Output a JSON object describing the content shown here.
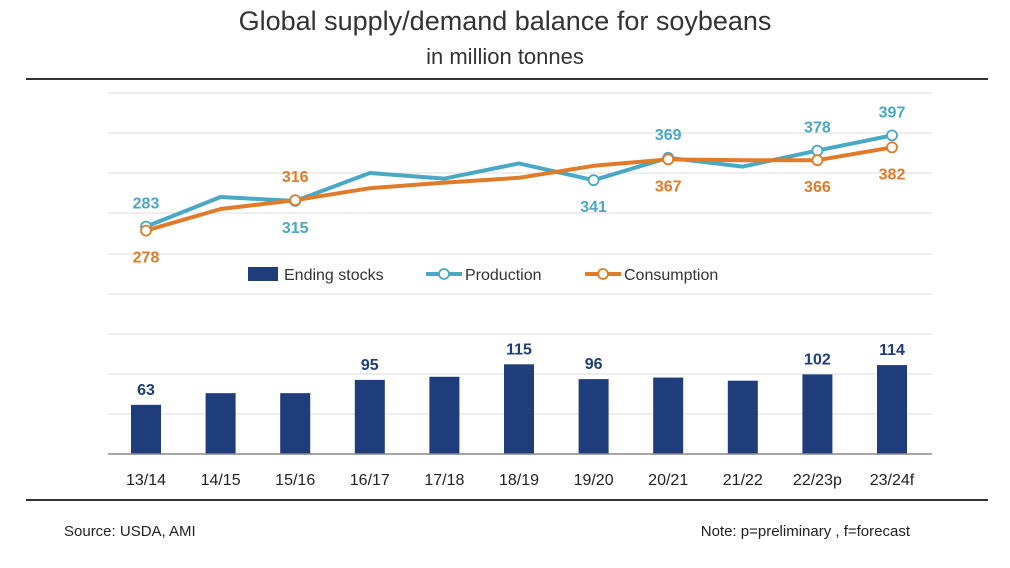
{
  "chart_data": {
    "type": "bar+line",
    "title": "Global supply/demand balance for soybeans",
    "subtitle": "in million tonnes",
    "categories": [
      "13/14",
      "14/15",
      "15/16",
      "16/17",
      "17/18",
      "18/19",
      "19/20",
      "20/21",
      "21/22",
      "22/23p",
      "23/24f"
    ],
    "bars": {
      "name": "Ending stocks",
      "color": "#1f3d7a",
      "values": [
        63,
        78,
        78,
        95,
        99,
        115,
        96,
        98,
        94,
        102,
        114
      ],
      "labels": [
        "63",
        "",
        "",
        "95",
        "",
        "115",
        "96",
        "",
        "",
        "102",
        "114"
      ]
    },
    "lines": [
      {
        "name": "Production",
        "color": "#4aa8c4",
        "values": [
          283,
          320,
          315,
          350,
          343,
          362,
          341,
          369,
          358,
          378,
          397
        ],
        "markers": [
          0,
          2,
          6,
          7,
          9,
          10
        ],
        "labels": [
          "283",
          "",
          "315",
          "",
          "",
          "",
          "341",
          "369",
          "",
          "378",
          "397"
        ]
      },
      {
        "name": "Consumption",
        "color": "#e07b2a",
        "values": [
          278,
          305,
          316,
          331,
          338,
          344,
          359,
          367,
          366,
          366,
          382
        ],
        "markers": [
          0,
          2,
          7,
          9,
          10
        ],
        "labels": [
          "278",
          "",
          "316",
          "",
          "",
          "",
          "",
          "367",
          "",
          "366",
          "382"
        ]
      }
    ],
    "legend": [
      "Ending stocks",
      "Production",
      "Consumption"
    ],
    "legend_position": "middle",
    "grid": true
  },
  "footer": {
    "source": "Source: USDA, AMI",
    "note": "Note: p=preliminary , f=forecast"
  }
}
